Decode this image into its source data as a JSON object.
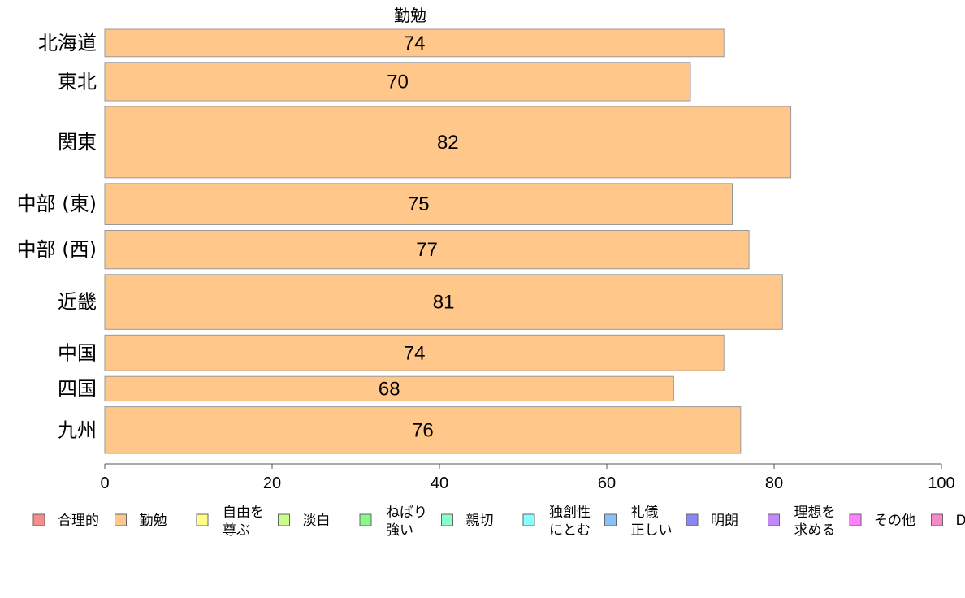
{
  "chart_data": {
    "type": "bar",
    "orientation": "horizontal",
    "title": "勤勉",
    "categories": [
      "北海道",
      "東北",
      "関東",
      "中部 (東)",
      "中部 (西)",
      "近畿",
      "中国",
      "四国",
      "九州"
    ],
    "values": [
      74,
      70,
      82,
      75,
      77,
      81,
      74,
      68,
      76
    ],
    "data_labels": [
      "74",
      "70",
      "82",
      "75",
      "77",
      "81",
      "74",
      "68",
      "76"
    ],
    "relative_bar_widths": [
      1.0,
      1.4,
      2.6,
      1.5,
      1.4,
      2.0,
      1.3,
      0.9,
      1.7
    ],
    "bar_color": "#FFC88A",
    "bar_edge_color": "#999999",
    "xlim": [
      0,
      100
    ],
    "x_ticks": [
      0,
      20,
      40,
      60,
      80,
      100
    ],
    "x_tick_labels": [
      "0",
      "20",
      "40",
      "60",
      "80",
      "100"
    ],
    "grid": false,
    "legend_position": "bottom",
    "legend": [
      {
        "lines": [
          "合理的"
        ],
        "color": "#F88C8C"
      },
      {
        "lines": [
          "勤勉"
        ],
        "color": "#FFC88A"
      },
      {
        "lines": [
          "自由を",
          "尊ぶ"
        ],
        "color": "#FFFF88"
      },
      {
        "lines": [
          "淡白"
        ],
        "color": "#C8FF88"
      },
      {
        "lines": [
          "ねばり",
          "強い"
        ],
        "color": "#88F888"
      },
      {
        "lines": [
          "親切"
        ],
        "color": "#88FFC8"
      },
      {
        "lines": [
          "独創性",
          "にとむ"
        ],
        "color": "#88FFFF"
      },
      {
        "lines": [
          "礼儀",
          "正しい"
        ],
        "color": "#88C0F8"
      },
      {
        "lines": [
          "明朗"
        ],
        "color": "#8888F0"
      },
      {
        "lines": [
          "理想を",
          "求める"
        ],
        "color": "#C088F8"
      },
      {
        "lines": [
          "その他"
        ],
        "color": "#FF80FF"
      },
      {
        "lines": [
          "D"
        ],
        "color": "#F888C8"
      }
    ]
  }
}
